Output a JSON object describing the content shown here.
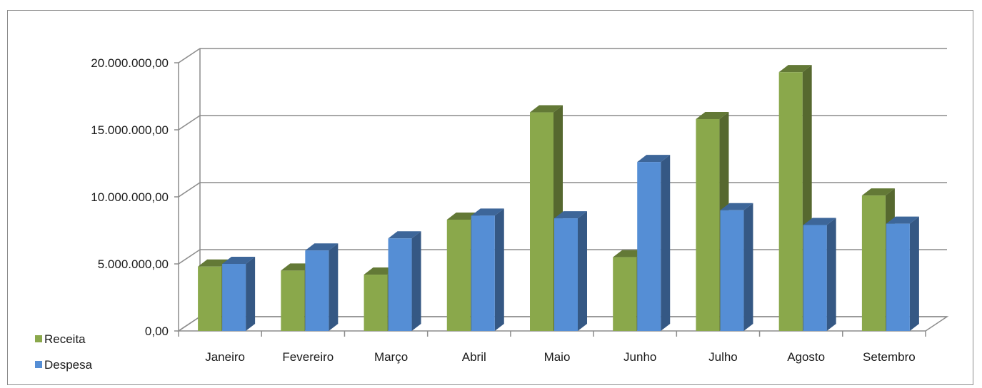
{
  "chart_data": {
    "type": "bar",
    "title": "",
    "xlabel": "",
    "ylabel": "",
    "categories": [
      "Janeiro",
      "Fevereiro",
      "Março",
      "Abril",
      "Maio",
      "Junho",
      "Julho",
      "Agosto",
      "Setembro"
    ],
    "series": [
      {
        "name": "Receita",
        "color": "#8aa84b",
        "values": [
          4800000,
          4500000,
          4200000,
          8300000,
          16300000,
          5500000,
          15800000,
          19300000,
          10100000
        ]
      },
      {
        "name": "Despesa",
        "color": "#558ed5",
        "values": [
          5000000,
          6000000,
          6900000,
          8600000,
          8400000,
          12600000,
          9000000,
          7900000,
          8000000
        ]
      }
    ],
    "ylim": [
      0,
      20000000
    ],
    "yticks": [
      0,
      5000000,
      10000000,
      15000000,
      20000000
    ],
    "ytick_labels": [
      "0,00",
      "5.000.000,00",
      "10.000.000,00",
      "15.000.000,00",
      "20.000.000,00"
    ],
    "grid": true,
    "legend_position": "bottom-left",
    "style": "3d-clustered-column"
  }
}
